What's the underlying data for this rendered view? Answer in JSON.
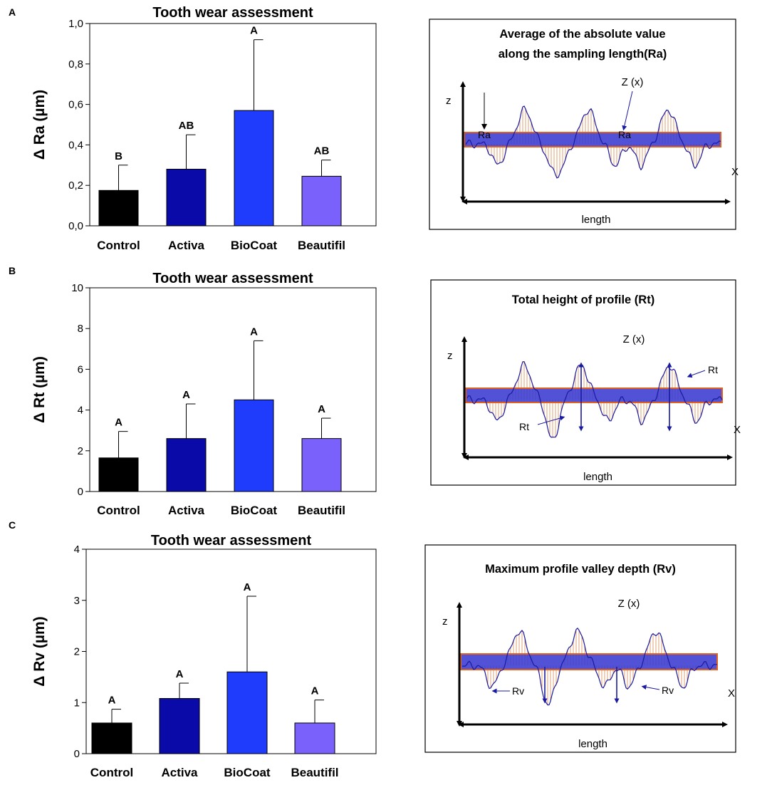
{
  "panels": [
    "A",
    "B",
    "C"
  ],
  "chart_data": [
    {
      "type": "bar",
      "title": "Tooth wear assessment",
      "xlabel": "",
      "ylabel": "Δ Ra (µm)",
      "categories": [
        "Control",
        "Activa",
        "BioCoat",
        "Beautifil"
      ],
      "values": [
        0.175,
        0.28,
        0.57,
        0.245
      ],
      "errors": [
        0.125,
        0.17,
        0.35,
        0.08
      ],
      "significance": [
        "B",
        "AB",
        "A",
        "AB"
      ],
      "ylim": [
        0,
        1.0
      ],
      "yticks": [
        0,
        0.2,
        0.4,
        0.6,
        0.8,
        1.0
      ],
      "ytick_labels": [
        "0,0",
        "0,2",
        "0,4",
        "0,6",
        "0,8",
        "1,0"
      ],
      "colors": [
        "#000000",
        "#0a0aa8",
        "#1f3cfc",
        "#7b61fc"
      ]
    },
    {
      "type": "bar",
      "title": "Tooth wear assessment",
      "xlabel": "",
      "ylabel": "Δ Rt (µm)",
      "categories": [
        "Control",
        "Activa",
        "BioCoat",
        "Beautifil"
      ],
      "values": [
        1.65,
        2.6,
        4.5,
        2.6
      ],
      "errors": [
        1.3,
        1.7,
        2.9,
        1.0
      ],
      "significance": [
        "A",
        "A",
        "A",
        "A"
      ],
      "ylim": [
        0,
        10
      ],
      "yticks": [
        0,
        2,
        4,
        6,
        8,
        10
      ],
      "ytick_labels": [
        "0",
        "2",
        "4",
        "6",
        "8",
        "10"
      ],
      "colors": [
        "#000000",
        "#0a0aa8",
        "#1f3cfc",
        "#7b61fc"
      ]
    },
    {
      "type": "bar",
      "title": "Tooth wear assessment",
      "xlabel": "",
      "ylabel": "Δ Rv (µm)",
      "categories": [
        "Control",
        "Activa",
        "BioCoat",
        "Beautifil"
      ],
      "values": [
        0.6,
        1.08,
        1.6,
        0.6
      ],
      "errors": [
        0.27,
        0.3,
        1.48,
        0.45
      ],
      "significance": [
        "A",
        "A",
        "A",
        "A"
      ],
      "ylim": [
        0,
        4
      ],
      "yticks": [
        0,
        1,
        2,
        3,
        4
      ],
      "ytick_labels": [
        "0",
        "1",
        "2",
        "3",
        "4"
      ],
      "colors": [
        "#000000",
        "#0a0aa8",
        "#1f3cfc",
        "#7b61fc"
      ]
    }
  ],
  "diagrams": [
    {
      "title_lines": [
        "Average of the absolute value",
        "along the sampling length(Ra)"
      ],
      "z_axis": "z",
      "x_axis": "X",
      "length_label": "length",
      "function_label": "Z (x)",
      "markers": [
        "Ra",
        "Ra"
      ]
    },
    {
      "title_lines": [
        "Total height of profile (Rt)"
      ],
      "z_axis": "z",
      "x_axis": "X",
      "length_label": "length",
      "function_label": "Z (x)",
      "markers": [
        "Rt",
        "Rt"
      ]
    },
    {
      "title_lines": [
        "Maximum profile valley depth (Rv)"
      ],
      "z_axis": "z",
      "x_axis": "X",
      "length_label": "length",
      "function_label": "Z (x)",
      "markers": [
        "Rv",
        "Rv"
      ]
    }
  ],
  "colors": {
    "band_fill": "#3a3ad0",
    "band_edge": "#e06020",
    "profile_line": "#1a1aa0",
    "hatch": "#e0a070"
  }
}
